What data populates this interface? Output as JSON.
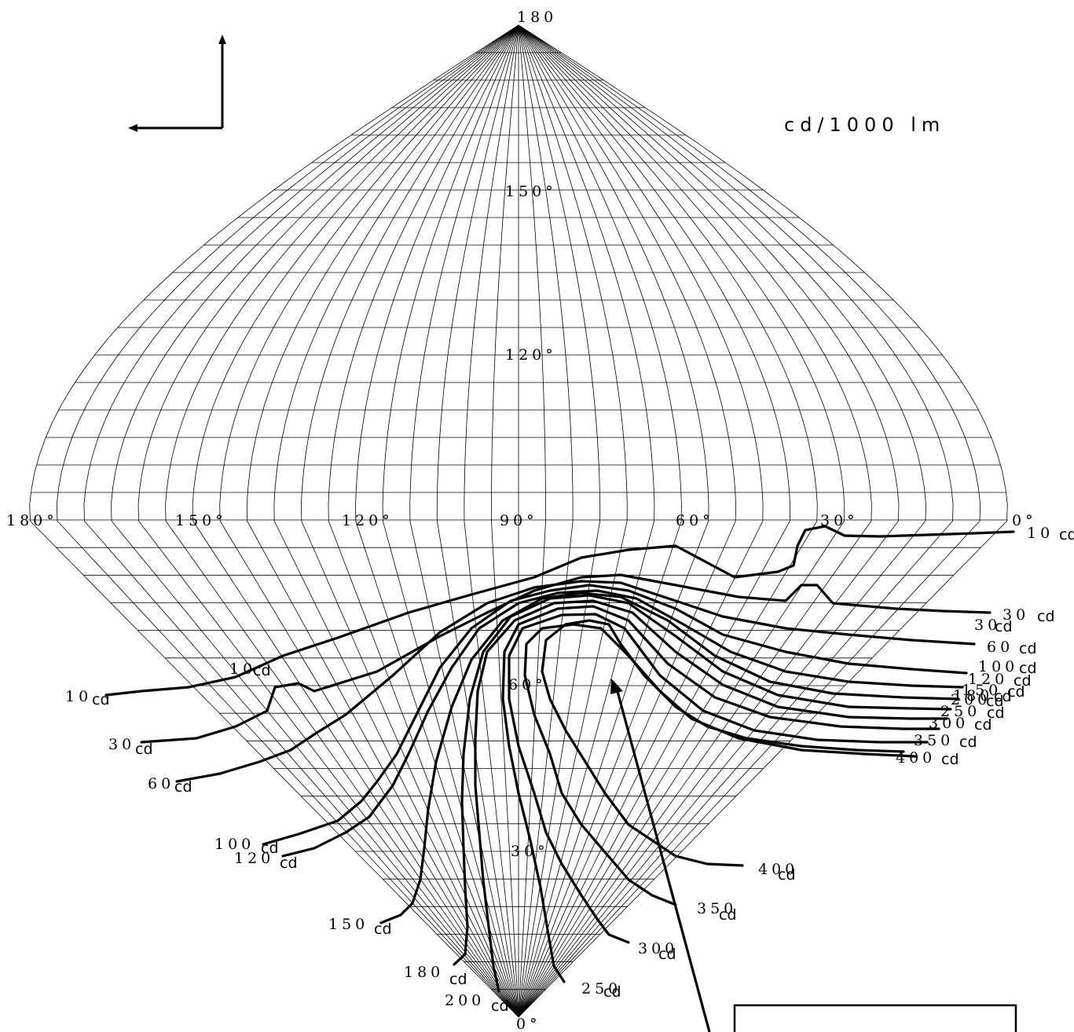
{
  "unit_label": "cd/1000 lm",
  "angle_labels": {
    "top": "180",
    "bottom": "0°",
    "v150": "150°",
    "v120": "120°",
    "v90_center": "90°",
    "v60": "60°",
    "v30": "30°",
    "h180": "180°",
    "h150": "150°",
    "h120": "120°",
    "h60": "60°",
    "h30": "30°",
    "h0": "0°"
  },
  "isocandela_labels": {
    "right": [
      {
        "value": "10",
        "unit": "cd"
      },
      {
        "value": "30",
        "unit": "cd"
      },
      {
        "value": "30",
        "unit": "cd"
      },
      {
        "value": "60",
        "unit": "cd"
      },
      {
        "value": "100",
        "unit": "cd"
      },
      {
        "value": "120",
        "unit": "cd"
      },
      {
        "value": "150",
        "unit": "cd"
      },
      {
        "value": "180",
        "unit": "cd"
      },
      {
        "value": "200",
        "unit": "cd"
      },
      {
        "value": "250",
        "unit": "cd"
      },
      {
        "value": "300",
        "unit": "cd"
      },
      {
        "value": "350",
        "unit": "cd"
      },
      {
        "value": "400",
        "unit": "cd"
      }
    ],
    "left": [
      {
        "value": "10",
        "unit": "cd"
      },
      {
        "value": "10",
        "unit": "cd"
      },
      {
        "value": "30",
        "unit": "cd"
      },
      {
        "value": "60",
        "unit": "cd"
      },
      {
        "value": "100",
        "unit": "cd"
      },
      {
        "value": "120",
        "unit": "cd"
      },
      {
        "value": "150",
        "unit": "cd"
      },
      {
        "value": "180",
        "unit": "cd"
      },
      {
        "value": "200",
        "unit": "cd"
      },
      {
        "value": "250",
        "unit": "cd"
      },
      {
        "value": "300",
        "unit": "cd"
      },
      {
        "value": "350",
        "unit": "cd"
      },
      {
        "value": "400",
        "unit": "cd"
      }
    ]
  }
}
